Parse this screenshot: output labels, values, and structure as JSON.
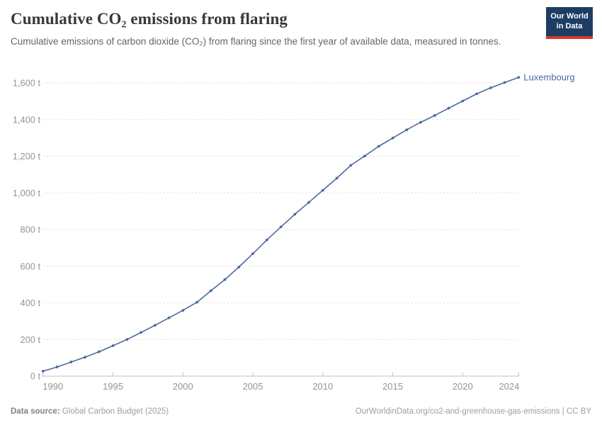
{
  "header": {
    "title": "Cumulative CO₂ emissions from flaring",
    "subtitle": "Cumulative emissions of carbon dioxide (CO₂) from flaring since the first year of available data, measured in tonnes.",
    "logo": {
      "line1": "Our World",
      "line2": "in Data",
      "bg_color": "#1d3d63",
      "stripe_color": "#d8352a"
    }
  },
  "chart_data": {
    "type": "line",
    "title": "Cumulative CO₂ emissions from flaring",
    "entity": "Luxembourg",
    "unit": "t",
    "x": [
      1990,
      1991,
      1992,
      1993,
      1994,
      1995,
      1996,
      1997,
      1998,
      1999,
      2000,
      2001,
      2002,
      2003,
      2004,
      2005,
      2006,
      2007,
      2008,
      2009,
      2010,
      2011,
      2012,
      2013,
      2014,
      2015,
      2016,
      2017,
      2018,
      2019,
      2020,
      2021,
      2022,
      2023,
      2024
    ],
    "series": [
      {
        "name": "Luxembourg",
        "values": [
          27,
          50,
          77,
          103,
          133,
          166,
          200,
          238,
          277,
          318,
          359,
          403,
          466,
          527,
          595,
          668,
          743,
          814,
          883,
          948,
          1014,
          1080,
          1150,
          1201,
          1254,
          1299,
          1344,
          1385,
          1422,
          1462,
          1501,
          1540,
          1573,
          1602,
          1630
        ]
      }
    ],
    "xlim": [
      1990,
      2024
    ],
    "ylim": [
      0,
      1600
    ],
    "x_ticks": [
      1990,
      1995,
      2000,
      2005,
      2010,
      2015,
      2020,
      2024
    ],
    "y_ticks": [
      0,
      200,
      400,
      600,
      800,
      1000,
      1200,
      1400,
      1600
    ],
    "y_tick_suffix": " t",
    "grid": "horizontal-dashed",
    "legend_position": "end-of-line-label",
    "line_color": "#4C6A9C",
    "entity_label_color": "#4C6A9C",
    "grid_color": "#dcdcdc",
    "axis_color": "#bfbfbf",
    "tick_label_color": "#949494"
  },
  "footer": {
    "source_label": "Data source:",
    "source_value": " Global Carbon Budget (2025)",
    "right_text": "OurWorldinData.org/co2-and-greenhouse-gas-emissions | CC BY"
  }
}
